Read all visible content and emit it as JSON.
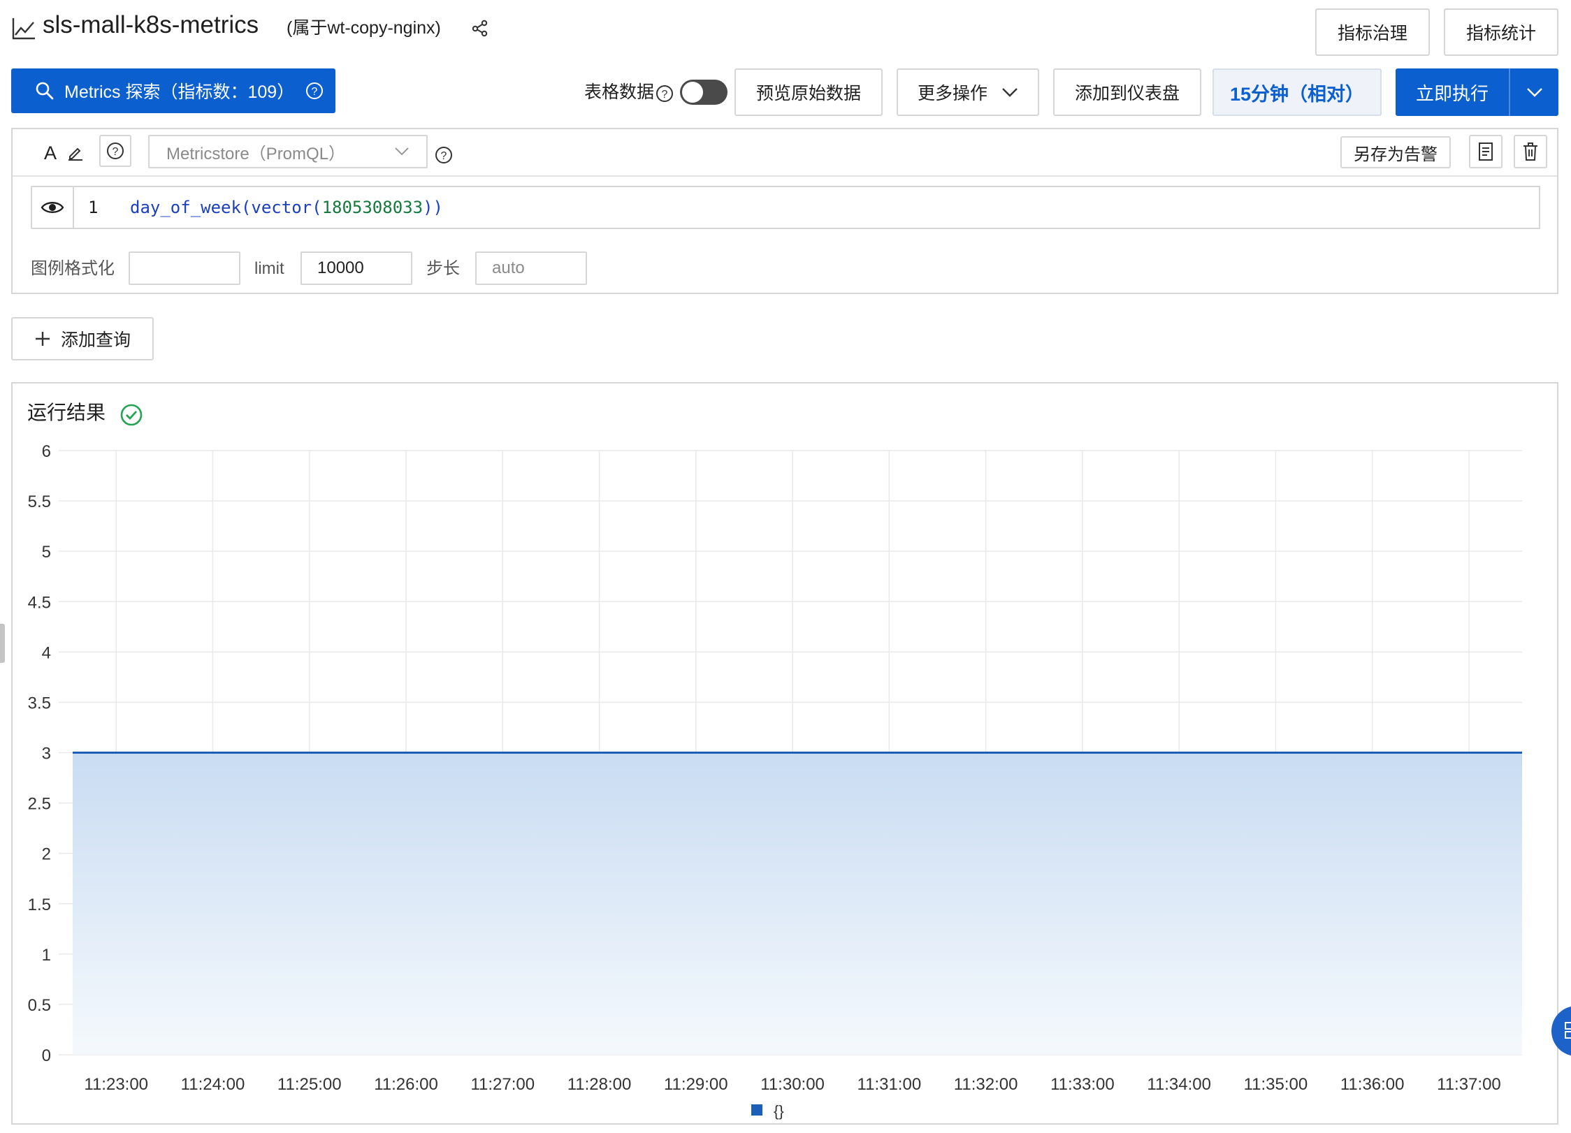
{
  "header": {
    "title": "sls-mall-k8s-metrics",
    "subtitle": "(属于wt-copy-nginx)",
    "btn_governance": "指标治理",
    "btn_statistics": "指标统计"
  },
  "toolbar": {
    "metrics_explore": "Metrics 探索（指标数：109）",
    "table_data_label": "表格数据",
    "table_data_toggle_on": false,
    "preview_raw": "预览原始数据",
    "more_actions": "更多操作",
    "add_to_dashboard": "添加到仪表盘",
    "time_range": "15分钟（相对）",
    "run_now": "立即执行"
  },
  "query": {
    "label": "A",
    "source_placeholder": "Metricstore（PromQL）",
    "save_alert": "另存为告警",
    "line_number": "1",
    "code_func1": "day_of_week",
    "code_func2": "vector",
    "code_number": "1805308033",
    "legend_format_label": "图例格式化",
    "legend_format_value": "",
    "limit_label": "limit",
    "limit_value": "10000",
    "step_label": "步长",
    "step_placeholder": "auto",
    "add_query": "添加查询"
  },
  "result": {
    "title": "运行结果",
    "status": "success"
  },
  "colors": {
    "primary": "#0b5fce",
    "success": "#23a453",
    "series": "#1c5fb8"
  },
  "chart_data": {
    "type": "area",
    "x": [
      "11:22:33",
      "11:23:00",
      "11:24:00",
      "11:25:00",
      "11:26:00",
      "11:27:00",
      "11:28:00",
      "11:29:00",
      "11:30:00",
      "11:31:00",
      "11:32:00",
      "11:33:00",
      "11:34:00",
      "11:35:00",
      "11:36:00",
      "11:37:00",
      "11:37:33"
    ],
    "x_ticks": [
      "11:23:00",
      "11:24:00",
      "11:25:00",
      "11:26:00",
      "11:27:00",
      "11:28:00",
      "11:29:00",
      "11:30:00",
      "11:31:00",
      "11:32:00",
      "11:33:00",
      "11:34:00",
      "11:35:00",
      "11:36:00",
      "11:37:00"
    ],
    "y_ticks": [
      "0",
      "0.5",
      "1",
      "1.5",
      "2",
      "2.5",
      "3",
      "3.5",
      "4",
      "4.5",
      "5",
      "5.5",
      "6"
    ],
    "series": [
      {
        "name": "{}",
        "values": [
          3,
          3,
          3,
          3,
          3,
          3,
          3,
          3,
          3,
          3,
          3,
          3,
          3,
          3,
          3,
          3,
          3
        ]
      }
    ],
    "ylim": [
      0,
      6
    ],
    "grid": true,
    "legend": "bottom-center",
    "xlabel": "",
    "ylabel": ""
  }
}
